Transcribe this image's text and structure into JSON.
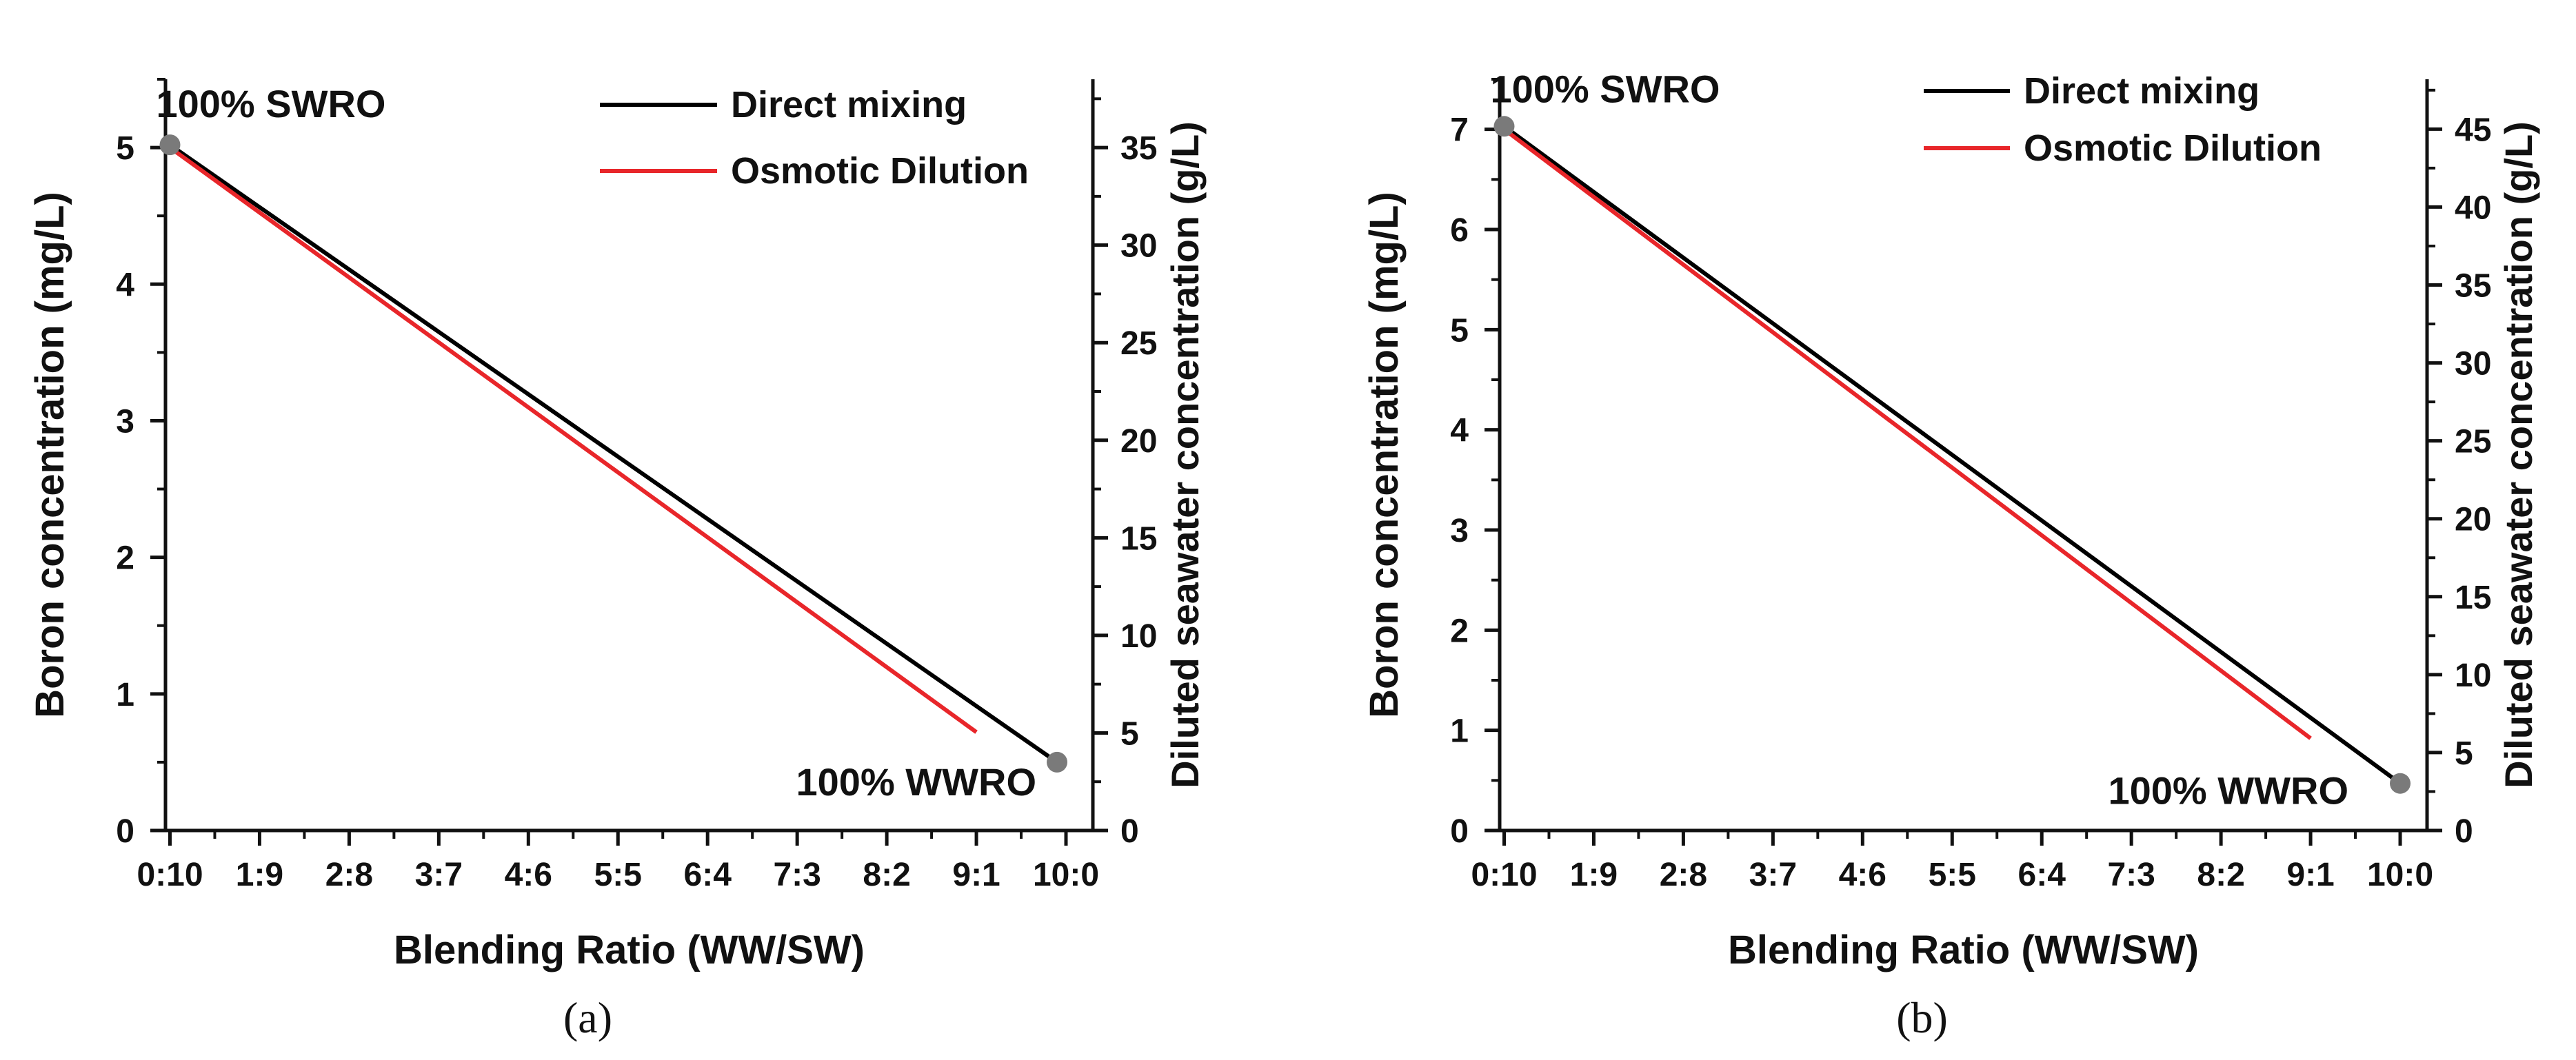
{
  "chart_data": [
    {
      "type": "line",
      "panel_caption": "(a)",
      "xlabel": "Blending Ratio (WW/SW)",
      "ylabel": "Boron concentration (mg/L)",
      "y2label": "Diluted seawater concentration (g/L)",
      "categories": [
        "0:10",
        "1:9",
        "2:8",
        "3:7",
        "4:6",
        "5:5",
        "6:4",
        "7:3",
        "8:2",
        "9:1",
        "10:0"
      ],
      "xlim": [
        -0.05,
        10.3
      ],
      "ylim": [
        0,
        5.5
      ],
      "y_ticks": [
        "0",
        "1",
        "2",
        "3",
        "4",
        "5"
      ],
      "y2lim": [
        0,
        38.5
      ],
      "y2_ticks": [
        "0",
        "5",
        "10",
        "15",
        "20",
        "25",
        "30",
        "35"
      ],
      "series": [
        {
          "name": "Direct mixing",
          "color": "#000000",
          "x": [
            0,
            9.9
          ],
          "y": [
            5.02,
            0.5
          ]
        },
        {
          "name": "Osmotic Dilution",
          "color": "#e8262a",
          "x": [
            0,
            9.0
          ],
          "y": [
            5.0,
            0.72
          ]
        }
      ],
      "endpoints": [
        {
          "label": "100% SWRO",
          "x": 0,
          "y": 5.02
        },
        {
          "label": "100% WWRO",
          "x": 9.9,
          "y": 0.5
        }
      ],
      "legend": "top-right"
    },
    {
      "type": "line",
      "panel_caption": "(b)",
      "xlabel": "Blending Ratio (WW/SW)",
      "ylabel": "Boron concentration (mg/L)",
      "y2label": "Diluted seawater concentration (g/L)",
      "categories": [
        "0:10",
        "1:9",
        "2:8",
        "3:7",
        "4:6",
        "5:5",
        "6:4",
        "7:3",
        "8:2",
        "9:1",
        "10:0"
      ],
      "xlim": [
        -0.05,
        10.3
      ],
      "ylim": [
        0,
        7.5
      ],
      "y_ticks": [
        "0",
        "1",
        "2",
        "3",
        "4",
        "5",
        "6",
        "7"
      ],
      "y2lim": [
        0,
        48.2
      ],
      "y2_ticks": [
        "0",
        "5",
        "10",
        "15",
        "20",
        "25",
        "30",
        "35",
        "40",
        "45"
      ],
      "series": [
        {
          "name": "Direct mixing",
          "color": "#000000",
          "x": [
            0,
            10.0
          ],
          "y": [
            7.03,
            0.47
          ]
        },
        {
          "name": "Osmotic Dilution",
          "color": "#e8262a",
          "x": [
            0,
            9.0
          ],
          "y": [
            7.0,
            0.92
          ]
        }
      ],
      "endpoints": [
        {
          "label": "100% SWRO",
          "x": 0,
          "y": 7.03
        },
        {
          "label": "100% WWRO",
          "x": 10.0,
          "y": 0.47
        }
      ],
      "legend": "top-right"
    }
  ]
}
